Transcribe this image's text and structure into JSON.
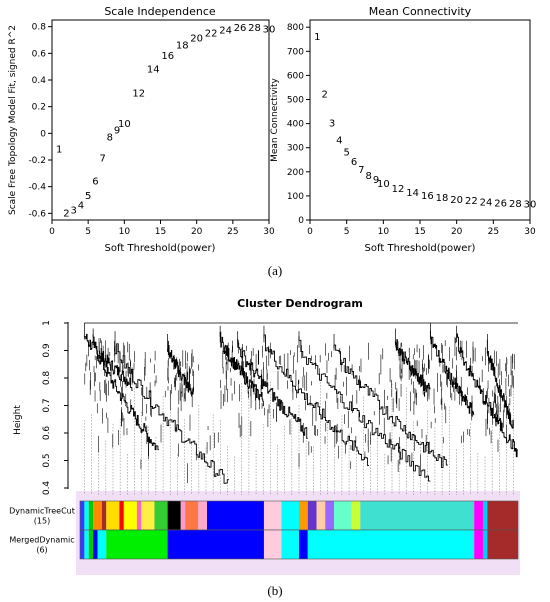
{
  "panels": {
    "a": {
      "caption": "(a)"
    },
    "b": {
      "caption": "(b)"
    }
  },
  "chart_data": [
    {
      "type": "scatter",
      "marker": "text-labels",
      "title": "Scale Independence",
      "xlabel": "Soft Threshold(power)",
      "ylabel": "Scale Free Topology Model Fit, signed R^2",
      "xlim": [
        0,
        30
      ],
      "ylim": [
        -0.65,
        0.85
      ],
      "xticks": [
        0,
        5,
        10,
        15,
        20,
        25,
        30
      ],
      "yticks": [
        -0.6,
        -0.4,
        -0.2,
        0.0,
        0.2,
        0.4,
        0.6,
        0.8
      ],
      "points": [
        {
          "x": 1,
          "y": -0.12,
          "label": "1"
        },
        {
          "x": 2,
          "y": -0.6,
          "label": "2"
        },
        {
          "x": 3,
          "y": -0.58,
          "label": "3"
        },
        {
          "x": 4,
          "y": -0.54,
          "label": "4"
        },
        {
          "x": 5,
          "y": -0.47,
          "label": "5"
        },
        {
          "x": 6,
          "y": -0.36,
          "label": "6"
        },
        {
          "x": 7,
          "y": -0.19,
          "label": "7"
        },
        {
          "x": 8,
          "y": -0.03,
          "label": "8"
        },
        {
          "x": 9,
          "y": 0.02,
          "label": "9"
        },
        {
          "x": 10,
          "y": 0.07,
          "label": "10"
        },
        {
          "x": 12,
          "y": 0.3,
          "label": "12"
        },
        {
          "x": 14,
          "y": 0.48,
          "label": "14"
        },
        {
          "x": 16,
          "y": 0.58,
          "label": "16"
        },
        {
          "x": 18,
          "y": 0.66,
          "label": "18"
        },
        {
          "x": 20,
          "y": 0.71,
          "label": "20"
        },
        {
          "x": 22,
          "y": 0.75,
          "label": "22"
        },
        {
          "x": 24,
          "y": 0.77,
          "label": "24"
        },
        {
          "x": 26,
          "y": 0.79,
          "label": "26"
        },
        {
          "x": 28,
          "y": 0.79,
          "label": "28"
        },
        {
          "x": 30,
          "y": 0.78,
          "label": "30"
        }
      ]
    },
    {
      "type": "scatter",
      "marker": "text-labels",
      "title": "Mean Connectivity",
      "xlabel": "Soft Threshold(power)",
      "ylabel": "Mean Connectivity",
      "xlim": [
        0,
        30
      ],
      "ylim": [
        0,
        830
      ],
      "xticks": [
        0,
        5,
        10,
        15,
        20,
        25,
        30
      ],
      "yticks": [
        0,
        100,
        200,
        300,
        400,
        500,
        600,
        700,
        800
      ],
      "points": [
        {
          "x": 1,
          "y": 760,
          "label": "1"
        },
        {
          "x": 2,
          "y": 520,
          "label": "2"
        },
        {
          "x": 3,
          "y": 400,
          "label": "3"
        },
        {
          "x": 4,
          "y": 330,
          "label": "4"
        },
        {
          "x": 5,
          "y": 280,
          "label": "5"
        },
        {
          "x": 6,
          "y": 240,
          "label": "6"
        },
        {
          "x": 7,
          "y": 208,
          "label": "7"
        },
        {
          "x": 8,
          "y": 182,
          "label": "8"
        },
        {
          "x": 9,
          "y": 165,
          "label": "9"
        },
        {
          "x": 10,
          "y": 150,
          "label": "10"
        },
        {
          "x": 12,
          "y": 128,
          "label": "12"
        },
        {
          "x": 14,
          "y": 113,
          "label": "14"
        },
        {
          "x": 16,
          "y": 100,
          "label": "16"
        },
        {
          "x": 18,
          "y": 92,
          "label": "18"
        },
        {
          "x": 20,
          "y": 84,
          "label": "20"
        },
        {
          "x": 22,
          "y": 78,
          "label": "22"
        },
        {
          "x": 24,
          "y": 72,
          "label": "24"
        },
        {
          "x": 26,
          "y": 68,
          "label": "26"
        },
        {
          "x": 28,
          "y": 66,
          "label": "28"
        },
        {
          "x": 30,
          "y": 64,
          "label": "30"
        }
      ]
    },
    {
      "type": "dendrogram",
      "title": "Cluster Dendrogram",
      "ylabel": "Height",
      "ylim": [
        0.4,
        1.0
      ],
      "yticks": [
        0.4,
        0.5,
        0.6,
        0.7,
        0.8,
        0.9,
        1.0
      ],
      "branches": [
        {
          "from": 0.01,
          "to": 0.12,
          "merge": 1.0,
          "min": 0.78
        },
        {
          "from": 0.03,
          "to": 0.18,
          "merge": 0.98,
          "min": 0.54
        },
        {
          "from": 0.08,
          "to": 0.34,
          "merge": 0.97,
          "min": 0.42
        },
        {
          "from": 0.2,
          "to": 0.26,
          "merge": 0.96,
          "min": 0.74
        },
        {
          "from": 0.32,
          "to": 0.42,
          "merge": 0.99,
          "min": 0.72
        },
        {
          "from": 0.36,
          "to": 0.52,
          "merge": 0.97,
          "min": 0.6
        },
        {
          "from": 0.42,
          "to": 0.66,
          "merge": 0.99,
          "min": 0.5
        },
        {
          "from": 0.5,
          "to": 0.8,
          "merge": 0.97,
          "min": 0.44
        },
        {
          "from": 0.58,
          "to": 0.84,
          "merge": 0.96,
          "min": 0.48
        },
        {
          "from": 0.72,
          "to": 0.8,
          "merge": 0.98,
          "min": 0.75
        },
        {
          "from": 0.8,
          "to": 0.9,
          "merge": 1.0,
          "min": 0.67
        },
        {
          "from": 0.86,
          "to": 1.0,
          "merge": 0.99,
          "min": 0.53
        },
        {
          "from": 0.93,
          "to": 0.99,
          "merge": 0.96,
          "min": 0.63
        }
      ],
      "color_rows": [
        {
          "label": "DynamicTreeCut\n(15)",
          "segments": [
            {
              "from": 0.0,
              "to": 0.01,
              "color": "#3a3aff"
            },
            {
              "from": 0.01,
              "to": 0.02,
              "color": "#00ffff"
            },
            {
              "from": 0.02,
              "to": 0.03,
              "color": "#00cc00"
            },
            {
              "from": 0.03,
              "to": 0.05,
              "color": "#ff8800"
            },
            {
              "from": 0.05,
              "to": 0.06,
              "color": "#a52a2a"
            },
            {
              "from": 0.06,
              "to": 0.09,
              "color": "#ffdd00"
            },
            {
              "from": 0.09,
              "to": 0.1,
              "color": "#ff0000"
            },
            {
              "from": 0.1,
              "to": 0.13,
              "color": "#ffff00"
            },
            {
              "from": 0.13,
              "to": 0.14,
              "color": "#ff66cc"
            },
            {
              "from": 0.14,
              "to": 0.17,
              "color": "#ffee44"
            },
            {
              "from": 0.17,
              "to": 0.2,
              "color": "#33cc33"
            },
            {
              "from": 0.2,
              "to": 0.23,
              "color": "#000000"
            },
            {
              "from": 0.23,
              "to": 0.24,
              "color": "#ff99cc"
            },
            {
              "from": 0.24,
              "to": 0.27,
              "color": "#ff7744"
            },
            {
              "from": 0.27,
              "to": 0.29,
              "color": "#ffaacc"
            },
            {
              "from": 0.29,
              "to": 0.42,
              "color": "#0000ff"
            },
            {
              "from": 0.42,
              "to": 0.46,
              "color": "#ffccdd"
            },
            {
              "from": 0.46,
              "to": 0.5,
              "color": "#00ffff"
            },
            {
              "from": 0.5,
              "to": 0.52,
              "color": "#ff9900"
            },
            {
              "from": 0.52,
              "to": 0.54,
              "color": "#6633cc"
            },
            {
              "from": 0.54,
              "to": 0.56,
              "color": "#ffccaa"
            },
            {
              "from": 0.56,
              "to": 0.58,
              "color": "#9966ff"
            },
            {
              "from": 0.58,
              "to": 0.62,
              "color": "#66ffcc"
            },
            {
              "from": 0.62,
              "to": 0.64,
              "color": "#ccff33"
            },
            {
              "from": 0.64,
              "to": 0.9,
              "color": "#40e0d0"
            },
            {
              "from": 0.9,
              "to": 0.92,
              "color": "#ff00ff"
            },
            {
              "from": 0.92,
              "to": 0.93,
              "color": "#00ccff"
            },
            {
              "from": 0.93,
              "to": 1.0,
              "color": "#a52a2a"
            }
          ]
        },
        {
          "label": "MergedDynamic\n(6)",
          "segments": [
            {
              "from": 0.0,
              "to": 0.01,
              "color": "#3a3aff"
            },
            {
              "from": 0.01,
              "to": 0.02,
              "color": "#00ffff"
            },
            {
              "from": 0.02,
              "to": 0.03,
              "color": "#00cc00"
            },
            {
              "from": 0.03,
              "to": 0.04,
              "color": "#0000ff"
            },
            {
              "from": 0.04,
              "to": 0.06,
              "color": "#00ffff"
            },
            {
              "from": 0.06,
              "to": 0.2,
              "color": "#00ee00"
            },
            {
              "from": 0.2,
              "to": 0.42,
              "color": "#0000ff"
            },
            {
              "from": 0.42,
              "to": 0.46,
              "color": "#ffccdd"
            },
            {
              "from": 0.46,
              "to": 0.5,
              "color": "#00ffff"
            },
            {
              "from": 0.5,
              "to": 0.52,
              "color": "#0000ff"
            },
            {
              "from": 0.52,
              "to": 0.9,
              "color": "#00ffff"
            },
            {
              "from": 0.9,
              "to": 0.92,
              "color": "#ff00ff"
            },
            {
              "from": 0.92,
              "to": 0.93,
              "color": "#00ccff"
            },
            {
              "from": 0.93,
              "to": 1.0,
              "color": "#a52a2a"
            }
          ]
        }
      ]
    }
  ]
}
